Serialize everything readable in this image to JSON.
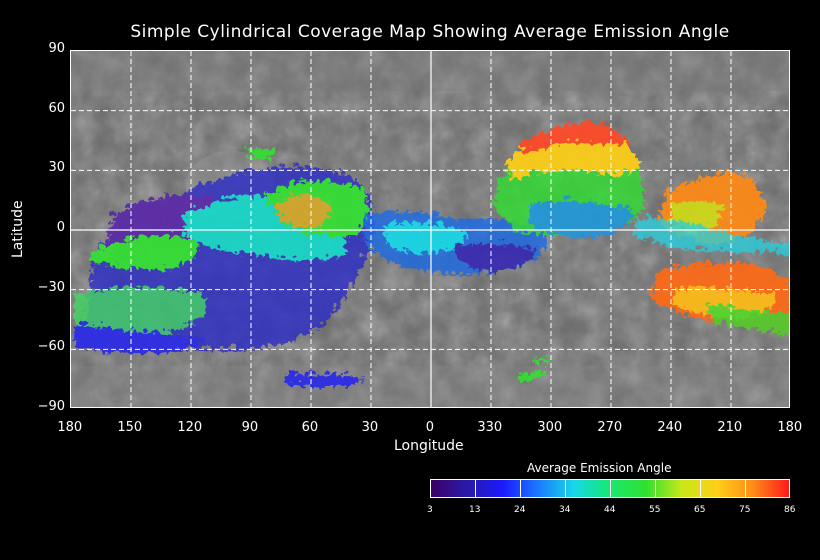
{
  "title": "Simple Cylindrical Coverage Map Showing Average Emission Angle",
  "axes": {
    "xlabel": "Longitude",
    "ylabel": "Latitude",
    "x_ticks": [
      "180",
      "150",
      "120",
      "90",
      "60",
      "30",
      "0",
      "330",
      "300",
      "270",
      "240",
      "210",
      "180"
    ],
    "y_ticks": [
      "90",
      "60",
      "30",
      "0",
      "−30",
      "−60",
      "−90"
    ],
    "grid": true
  },
  "colorbar": {
    "title": "Average Emission Angle",
    "ticks": [
      "3",
      "13",
      "24",
      "34",
      "44",
      "55",
      "65",
      "75",
      "86"
    ],
    "colors": [
      "#3b0066",
      "#2a1aa8",
      "#1a1aff",
      "#1a7aff",
      "#18d8e8",
      "#18e870",
      "#30e030",
      "#c8e818",
      "#ffd018",
      "#ff8a18",
      "#ff1a1a"
    ]
  },
  "map": {
    "projection": "simple cylindrical",
    "grid_color": "#ffffff"
  }
}
